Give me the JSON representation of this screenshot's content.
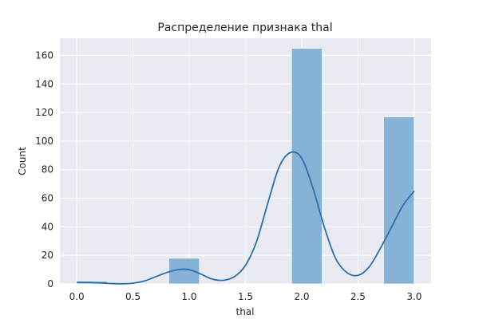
{
  "chart_data": {
    "type": "bar",
    "title": "Распределение признака thal",
    "xlabel": "thal",
    "ylabel": "Count",
    "xlim": [
      -0.15,
      3.15
    ],
    "ylim": [
      0,
      172
    ],
    "x_ticks": [
      0.0,
      0.5,
      1.0,
      1.5,
      2.0,
      2.5,
      3.0
    ],
    "x_tick_labels": [
      "0.0",
      "0.5",
      "1.0",
      "1.5",
      "2.0",
      "2.5",
      "3.0"
    ],
    "y_ticks": [
      0,
      20,
      40,
      60,
      80,
      100,
      120,
      140,
      160
    ],
    "y_tick_labels": [
      "0",
      "20",
      "40",
      "60",
      "80",
      "100",
      "120",
      "140",
      "160"
    ],
    "grid": true,
    "bins": [
      {
        "x0": 0.0,
        "x1": 0.273,
        "count": 2
      },
      {
        "x0": 0.818,
        "x1": 1.091,
        "count": 18
      },
      {
        "x0": 1.909,
        "x1": 2.182,
        "count": 165
      },
      {
        "x0": 2.727,
        "x1": 3.0,
        "count": 117
      }
    ],
    "kde": {
      "x": [
        0.0,
        0.1,
        0.2,
        0.3,
        0.4,
        0.5,
        0.6,
        0.7,
        0.8,
        0.9,
        1.0,
        1.1,
        1.2,
        1.3,
        1.4,
        1.5,
        1.6,
        1.7,
        1.8,
        1.9,
        2.0,
        2.1,
        2.2,
        2.3,
        2.4,
        2.5,
        2.6,
        2.7,
        2.8,
        2.9,
        3.0
      ],
      "y": [
        1.2,
        1.0,
        0.7,
        0.3,
        0.1,
        0.5,
        2,
        5,
        8,
        10,
        10,
        7,
        3.5,
        2.5,
        5,
        13,
        30,
        57,
        82,
        92,
        88,
        67,
        40,
        18,
        8,
        6,
        12,
        25,
        40,
        55,
        65
      ]
    },
    "colors": {
      "bar": "#86b2d6",
      "line": "#2771b0",
      "background": "#eaeaf2",
      "grid": "#ffffff"
    }
  }
}
